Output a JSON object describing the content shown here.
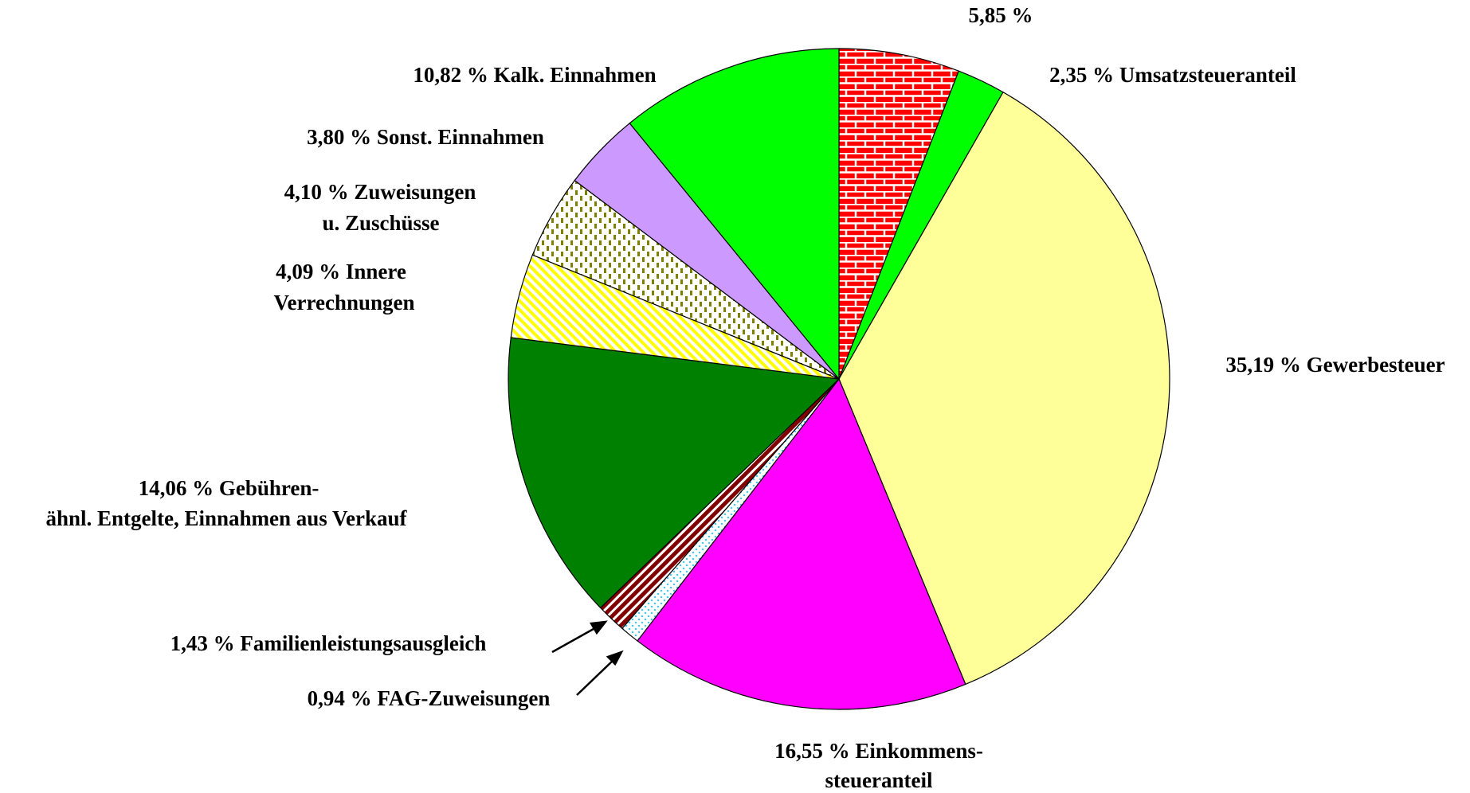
{
  "chart_data": {
    "type": "pie",
    "values": [
      5.85,
      2.35,
      35.19,
      16.55,
      0.94,
      1.43,
      14.06,
      4.09,
      4.1,
      3.8,
      10.82
    ],
    "labels": [
      [
        "5,85 %"
      ],
      [
        "2,35 % Umsatzsteueranteil"
      ],
      [
        "35,19 % Gewerbesteuer"
      ],
      [
        "16,55 % Einkommens-",
        "steueranteil"
      ],
      [
        "0,94 % FAG-Zuweisungen"
      ],
      [
        "1,43 % Familienleistungsausgleich"
      ],
      [
        "14,06 % Gebühren-",
        "ähnl. Entgelte, Einnahmen aus Verkauf"
      ],
      [
        "4,09 % Innere",
        "Verrechnungen"
      ],
      [
        "4,10 % Zuweisungen",
        "u. Zuschüsse"
      ],
      [
        "3,80 % Sonst. Einnahmen"
      ],
      [
        "10,82 % Kalk. Einnahmen"
      ]
    ],
    "colors": [
      "#ff0000",
      "#00ff00",
      "#ffff99",
      "#ff00ff",
      "#33ccff",
      "#800000",
      "#008000",
      "#ffff00",
      "#808000",
      "#cc99ff",
      "#00ff00"
    ]
  }
}
